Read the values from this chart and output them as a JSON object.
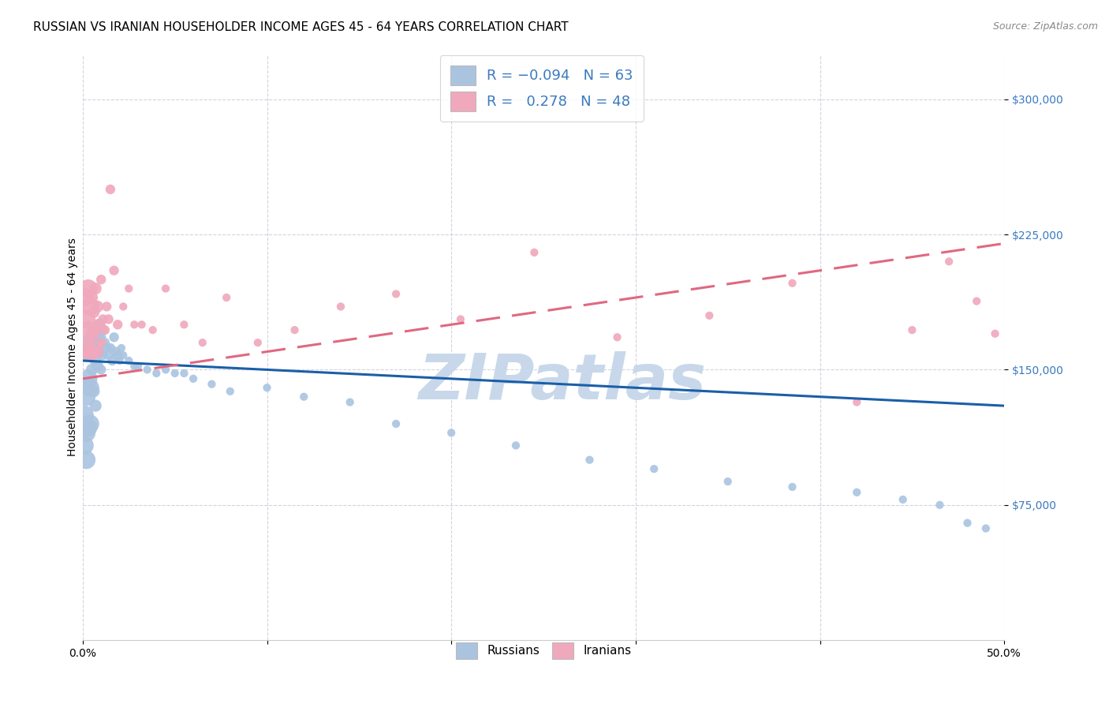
{
  "title": "RUSSIAN VS IRANIAN HOUSEHOLDER INCOME AGES 45 - 64 YEARS CORRELATION CHART",
  "source": "Source: ZipAtlas.com",
  "ylabel": "Householder Income Ages 45 - 64 years",
  "xlim": [
    0.0,
    0.5
  ],
  "ylim": [
    0,
    325000
  ],
  "yticks": [
    75000,
    150000,
    225000,
    300000
  ],
  "ytick_labels": [
    "$75,000",
    "$150,000",
    "$225,000",
    "$300,000"
  ],
  "xticks": [
    0.0,
    0.1,
    0.2,
    0.3,
    0.4,
    0.5
  ],
  "xtick_labels": [
    "0.0%",
    "",
    "",
    "",
    "",
    "50.0%"
  ],
  "russian_color": "#aac4e0",
  "iranian_color": "#f0a8bc",
  "russian_line_color": "#1a5fa8",
  "iranian_line_color": "#e06880",
  "watermark": "ZIPatlas",
  "watermark_color": "#c8d8ea",
  "title_fontsize": 11,
  "axis_label_fontsize": 10,
  "tick_fontsize": 10,
  "legend_fontsize": 13,
  "source_fontsize": 9,
  "russian_x": [
    0.001,
    0.001,
    0.002,
    0.002,
    0.002,
    0.003,
    0.003,
    0.003,
    0.004,
    0.004,
    0.004,
    0.005,
    0.005,
    0.006,
    0.006,
    0.007,
    0.007,
    0.007,
    0.008,
    0.008,
    0.009,
    0.009,
    0.01,
    0.01,
    0.011,
    0.011,
    0.012,
    0.013,
    0.014,
    0.015,
    0.016,
    0.017,
    0.018,
    0.019,
    0.02,
    0.021,
    0.022,
    0.025,
    0.028,
    0.03,
    0.035,
    0.04,
    0.045,
    0.05,
    0.055,
    0.06,
    0.07,
    0.08,
    0.1,
    0.12,
    0.145,
    0.17,
    0.2,
    0.235,
    0.275,
    0.31,
    0.35,
    0.385,
    0.42,
    0.445,
    0.465,
    0.48,
    0.49
  ],
  "russian_y": [
    125000,
    108000,
    135000,
    115000,
    100000,
    160000,
    145000,
    118000,
    165000,
    140000,
    120000,
    170000,
    150000,
    162000,
    138000,
    172000,
    155000,
    130000,
    168000,
    152000,
    175000,
    160000,
    168000,
    150000,
    172000,
    158000,
    165000,
    162000,
    158000,
    162000,
    155000,
    168000,
    160000,
    158000,
    155000,
    162000,
    158000,
    155000,
    152000,
    152000,
    150000,
    148000,
    150000,
    148000,
    148000,
    145000,
    142000,
    138000,
    140000,
    135000,
    132000,
    120000,
    115000,
    108000,
    100000,
    95000,
    88000,
    85000,
    82000,
    78000,
    75000,
    65000,
    62000
  ],
  "iranian_x": [
    0.001,
    0.002,
    0.002,
    0.003,
    0.003,
    0.004,
    0.004,
    0.005,
    0.005,
    0.006,
    0.006,
    0.007,
    0.007,
    0.008,
    0.008,
    0.009,
    0.01,
    0.01,
    0.011,
    0.012,
    0.013,
    0.014,
    0.015,
    0.017,
    0.019,
    0.022,
    0.025,
    0.028,
    0.032,
    0.038,
    0.045,
    0.055,
    0.065,
    0.078,
    0.095,
    0.115,
    0.14,
    0.17,
    0.205,
    0.245,
    0.29,
    0.34,
    0.385,
    0.42,
    0.45,
    0.47,
    0.485,
    0.495
  ],
  "iranian_y": [
    190000,
    178000,
    162000,
    195000,
    172000,
    185000,
    160000,
    190000,
    168000,
    182000,
    160000,
    195000,
    172000,
    185000,
    160000,
    175000,
    200000,
    165000,
    178000,
    172000,
    185000,
    178000,
    250000,
    205000,
    175000,
    185000,
    195000,
    175000,
    175000,
    172000,
    195000,
    175000,
    165000,
    190000,
    165000,
    172000,
    185000,
    192000,
    178000,
    215000,
    168000,
    180000,
    198000,
    132000,
    172000,
    210000,
    188000,
    170000
  ]
}
